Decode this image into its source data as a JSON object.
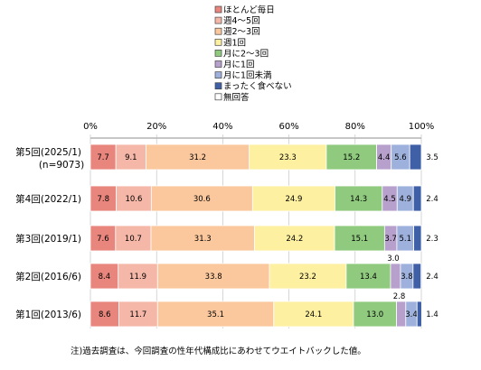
{
  "chart_data": {
    "type": "bar",
    "orientation": "horizontal",
    "stacked": true,
    "percent": true,
    "xlim": [
      0,
      100
    ],
    "ticks": [
      "0%",
      "20%",
      "40%",
      "60%",
      "80%",
      "100%"
    ],
    "categories": [
      [
        "第5回(2025/1)",
        "(n=9073)"
      ],
      [
        "第4回(2022/1)"
      ],
      [
        "第3回(2019/1)"
      ],
      [
        "第2回(2016/6)"
      ],
      [
        "第1回(2013/6)"
      ]
    ],
    "series": [
      {
        "name": "ほとんど毎日",
        "color": "#e8857c",
        "values": [
          7.7,
          7.8,
          7.6,
          8.4,
          8.6
        ]
      },
      {
        "name": "週4～5回",
        "color": "#f5b7a8",
        "values": [
          9.1,
          10.6,
          10.7,
          11.9,
          11.7
        ]
      },
      {
        "name": "週2～3回",
        "color": "#fbc89e",
        "values": [
          31.2,
          30.6,
          31.3,
          33.8,
          35.1
        ]
      },
      {
        "name": "週1回",
        "color": "#fdf0a0",
        "values": [
          23.3,
          24.9,
          24.2,
          23.2,
          24.1
        ]
      },
      {
        "name": "月に2～3回",
        "color": "#8fca7f",
        "values": [
          15.2,
          14.3,
          15.1,
          13.4,
          13.0
        ]
      },
      {
        "name": "月に1回",
        "color": "#b7a0cc",
        "values": [
          4.4,
          4.5,
          3.7,
          3.0,
          2.8
        ]
      },
      {
        "name": "月に1回未満",
        "color": "#9eb1dc",
        "values": [
          5.6,
          4.9,
          5.1,
          3.8,
          3.4
        ]
      },
      {
        "name": "まったく食べない",
        "color": "#3f5fa6",
        "values": [
          3.5,
          2.4,
          2.3,
          2.4,
          1.4
        ]
      },
      {
        "name": "無回答",
        "color": "#ffffff",
        "values": [
          0,
          0,
          0,
          0,
          0
        ]
      }
    ],
    "label_display": [
      [
        "7.7",
        "9.1",
        "31.2",
        "23.3",
        "15.2",
        "4.4",
        "5.6",
        "3.5"
      ],
      [
        "7.8",
        "10.6",
        "30.6",
        "24.9",
        "14.3",
        "4.5",
        "4.9",
        "2.4"
      ],
      [
        "7.6",
        "10.7",
        "31.3",
        "24.2",
        "15.1",
        "3.7",
        "5.1",
        "2.3"
      ],
      [
        "8.4",
        "11.9",
        "33.8",
        "23.2",
        "13.4",
        "3.0",
        "3.8",
        "2.4"
      ],
      [
        "8.6",
        "11.7",
        "35.1",
        "24.1",
        "13.0",
        "2.8",
        "3.4",
        "1.4"
      ]
    ],
    "note": "注)過去調査は、今回調査の性年代構成比にあわせてウエイトバックした値。"
  }
}
